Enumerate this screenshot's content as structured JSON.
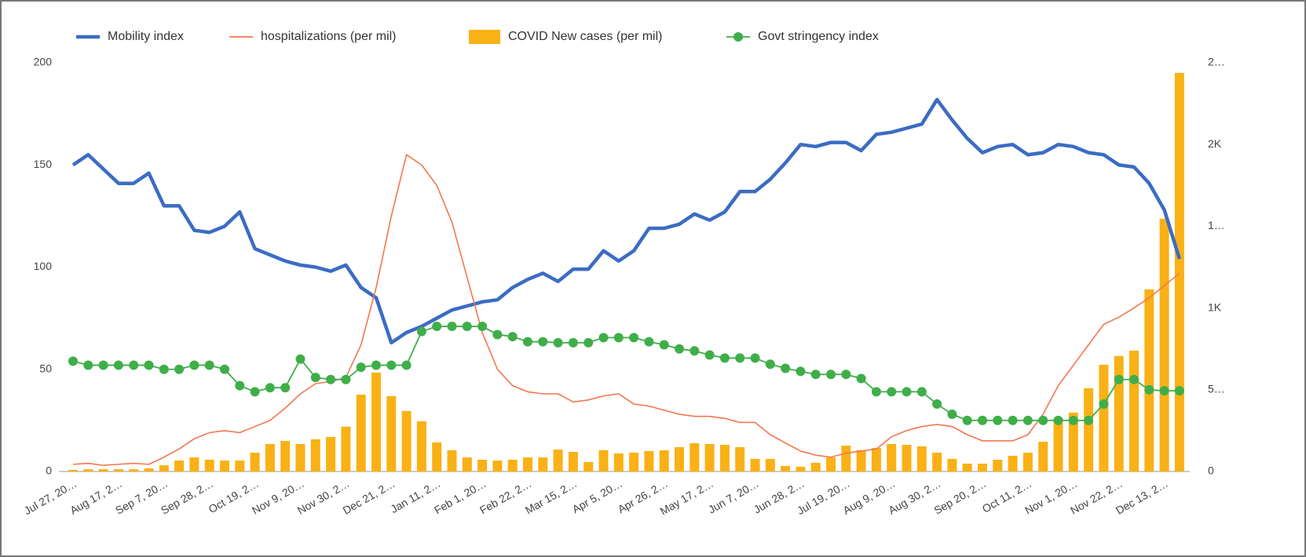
{
  "chart_data": {
    "type": "combo",
    "categories": [
      "Jul 27, 20…",
      null,
      null,
      "Aug 17, 2…",
      null,
      null,
      "Sep 7, 20…",
      null,
      null,
      "Sep 28, 2…",
      null,
      null,
      "Oct 19, 2…",
      null,
      null,
      "Nov 9, 20…",
      null,
      null,
      "Nov 30, 2…",
      null,
      null,
      "Dec 21, 2…",
      null,
      null,
      "Jan 11, 2…",
      null,
      null,
      "Feb 1, 20…",
      null,
      null,
      "Feb 22, 2…",
      null,
      null,
      "Mar 15, 2…",
      null,
      null,
      "Apr 5, 20…",
      null,
      null,
      "Apr 26, 2…",
      null,
      null,
      "May 17, 2…",
      null,
      null,
      "Jun 7, 20…",
      null,
      null,
      "Jun 28, 2…",
      null,
      null,
      "Jul 19, 20…",
      null,
      null,
      "Aug 9, 20…",
      null,
      null,
      "Aug 30, 2…",
      null,
      null,
      "Sep 20, 2…",
      null,
      null,
      "Oct 11, 2…",
      null,
      null,
      "Nov 1, 20…",
      null,
      null,
      "Nov 22, 2…",
      null,
      null,
      "Dec 13, 2…",
      null
    ],
    "series": [
      {
        "name": "Mobility index",
        "kind": "line",
        "color": "#3b6cc4",
        "values": [
          150,
          155,
          148,
          141,
          141,
          146,
          130,
          130,
          118,
          117,
          120,
          127,
          109,
          106,
          103,
          101,
          100,
          98,
          101,
          90,
          85,
          63,
          68,
          71,
          75,
          79,
          81,
          83,
          84,
          90,
          94,
          97,
          93,
          99,
          99,
          108,
          103,
          108,
          119,
          119,
          121,
          126,
          123,
          127,
          137,
          137,
          143,
          151,
          160,
          159,
          161,
          161,
          157,
          165,
          166,
          168,
          170,
          182,
          172,
          163,
          156,
          159,
          160,
          155,
          156,
          160,
          159,
          156,
          155,
          150,
          149,
          141,
          128,
          104
        ]
      },
      {
        "name": "hospitalizations (per mil)",
        "kind": "line",
        "color": "#f4774f",
        "values": [
          3.5,
          4,
          3,
          3.5,
          4,
          3.5,
          7,
          11,
          16,
          19,
          20,
          19,
          22,
          25,
          31,
          38,
          43,
          44,
          46,
          62,
          90,
          125,
          155,
          150,
          140,
          122,
          95,
          68,
          50,
          42,
          39,
          38,
          38,
          34,
          35,
          37,
          38,
          33,
          32,
          30,
          28,
          27,
          27,
          26,
          24,
          24,
          18,
          14,
          10,
          8,
          7,
          9,
          10,
          11,
          17,
          20,
          22,
          23,
          22,
          18,
          15,
          15,
          15,
          18,
          28,
          42,
          52,
          62,
          72,
          75.5,
          80,
          85,
          91,
          97
        ]
      },
      {
        "name": "COVID New cases (per mil)",
        "kind": "bar",
        "axis": "y2",
        "color": "#f9b115",
        "values": [
          10,
          14,
          14,
          14,
          14,
          19,
          38,
          67,
          86,
          72,
          67,
          67,
          115,
          168,
          187,
          168,
          197,
          211,
          274,
          470,
          605,
          461,
          370,
          307,
          178,
          130,
          86,
          72,
          67,
          72,
          86,
          86,
          134,
          120,
          58,
          130,
          110,
          115,
          125,
          130,
          149,
          173,
          168,
          163,
          149,
          77,
          77,
          34,
          29,
          53,
          86,
          158,
          130,
          144,
          168,
          163,
          154,
          115,
          77,
          48,
          48,
          72,
          96,
          115,
          182,
          326,
          360,
          509,
          653,
          706,
          739,
          1114,
          1546,
          2438
        ]
      },
      {
        "name": "Govt stringency index",
        "kind": "dots",
        "color": "#3fae49",
        "values": [
          54,
          52,
          52,
          52,
          52,
          52,
          50,
          50,
          52,
          52,
          50,
          42,
          39,
          41,
          41,
          55,
          46,
          45,
          45,
          51,
          52,
          52,
          52,
          68.5,
          71,
          71,
          71,
          71,
          67,
          66,
          63.5,
          63.5,
          63,
          63,
          63,
          65.5,
          65.5,
          65.5,
          63.5,
          62,
          60,
          59,
          57,
          55.5,
          55.5,
          55.5,
          52.5,
          50.5,
          49,
          47.5,
          47.5,
          47.5,
          45.5,
          39,
          39,
          39,
          39,
          33,
          28,
          25,
          25,
          25,
          25,
          25,
          25,
          25,
          25,
          25,
          33,
          45,
          45,
          40,
          39.5,
          39.5
        ]
      }
    ],
    "ylim": [
      0,
      200
    ],
    "yticks": [
      0,
      50,
      100,
      150,
      200
    ],
    "y2lim": [
      0,
      2500
    ],
    "y2ticks": [
      0,
      {
        "value": 500,
        "label": "5…"
      },
      {
        "value": 1000,
        "label": "1K"
      },
      {
        "value": 1500,
        "label": "1…"
      },
      {
        "value": 2000,
        "label": "2K"
      },
      {
        "value": 2500,
        "label": "2…"
      }
    ],
    "grid": false,
    "legend": "top"
  }
}
